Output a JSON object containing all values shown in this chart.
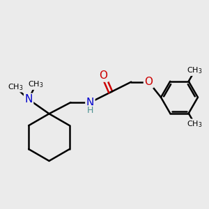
{
  "background_color": "#ebebeb",
  "atom_colors": {
    "C": "#000000",
    "N": "#0000cc",
    "O": "#cc0000",
    "H": "#4a9090"
  },
  "bond_color": "#000000",
  "bond_width": 1.8,
  "figsize": [
    3.0,
    3.0
  ],
  "dpi": 100,
  "xlim": [
    0,
    10
  ],
  "ylim": [
    0,
    10
  ]
}
